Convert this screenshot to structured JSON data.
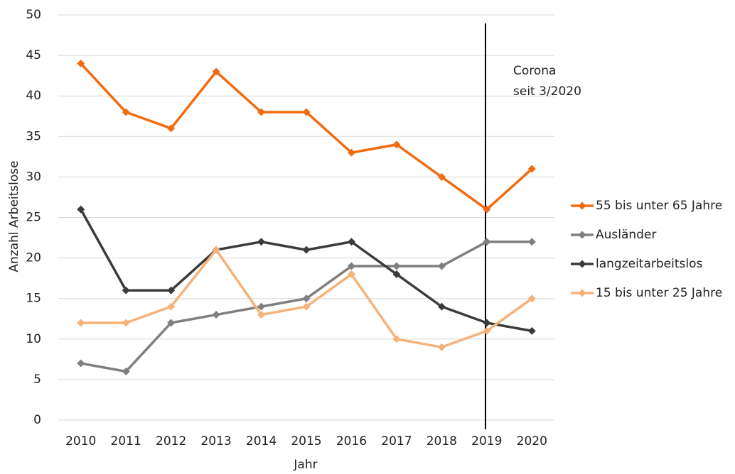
{
  "chart_data": {
    "type": "line",
    "xlabel": "Jahr",
    "ylabel": "Anzahl Arbeitslose",
    "categories": [
      "2010",
      "2011",
      "2012",
      "2013",
      "2014",
      "2015",
      "2016",
      "2017",
      "2018",
      "2019",
      "2020"
    ],
    "series": [
      {
        "name": "55 bis unter 65 Jahre",
        "color": "#f26b0f",
        "values": [
          44,
          38,
          36,
          43,
          38,
          38,
          33,
          34,
          30,
          26,
          31
        ]
      },
      {
        "name": "Ausländer",
        "color": "#7f7f7f",
        "values": [
          7,
          6,
          12,
          13,
          14,
          15,
          19,
          19,
          19,
          22,
          22
        ]
      },
      {
        "name": "langzeitarbeitslos",
        "color": "#3b3b3b",
        "values": [
          26,
          16,
          16,
          21,
          22,
          21,
          22,
          18,
          14,
          12,
          11
        ]
      },
      {
        "name": "15 bis unter 25 Jahre",
        "color": "#f5b27a",
        "values": [
          12,
          12,
          14,
          21,
          13,
          14,
          18,
          10,
          9,
          11,
          15
        ]
      }
    ],
    "annotation": [
      "Corona",
      "seit 3/2020"
    ],
    "ylim": [
      0,
      50
    ],
    "yticks": [
      0,
      5,
      10,
      15,
      20,
      25,
      30,
      35,
      40,
      45,
      50
    ],
    "grid": true,
    "legend": "right"
  }
}
